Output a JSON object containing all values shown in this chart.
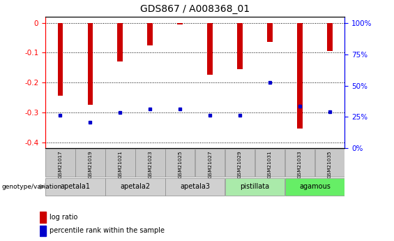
{
  "title": "GDS867 / A008368_01",
  "samples": [
    "GSM21017",
    "GSM21019",
    "GSM21021",
    "GSM21023",
    "GSM21025",
    "GSM21027",
    "GSM21029",
    "GSM21031",
    "GSM21033",
    "GSM21035"
  ],
  "log_ratios": [
    -0.245,
    -0.275,
    -0.13,
    -0.075,
    -0.005,
    -0.175,
    -0.155,
    -0.065,
    -0.355,
    -0.095
  ],
  "percentile_ranks": [
    25,
    20,
    27,
    30,
    30,
    25,
    25,
    50,
    32,
    28
  ],
  "ylim_left": [
    -0.42,
    0.02
  ],
  "ylim_right": [
    0,
    105
  ],
  "yticks_left": [
    0.0,
    -0.1,
    -0.2,
    -0.3,
    -0.4
  ],
  "yticks_right": [
    0,
    25,
    50,
    75,
    100
  ],
  "bar_color": "#cc0000",
  "dot_color": "#0000cc",
  "sample_box_color": "#c8c8c8",
  "group_colors": {
    "apetala1": "#d0d0d0",
    "apetala2": "#d0d0d0",
    "apetala3": "#d0d0d0",
    "pistillata": "#aaeaaa",
    "agamous": "#66ee66"
  },
  "group_spans": [
    [
      "apetala1",
      0,
      1
    ],
    [
      "apetala2",
      2,
      3
    ],
    [
      "apetala3",
      4,
      5
    ],
    [
      "pistillata",
      6,
      7
    ],
    [
      "agamous",
      8,
      9
    ]
  ],
  "legend_items": [
    "log ratio",
    "percentile rank within the sample"
  ]
}
